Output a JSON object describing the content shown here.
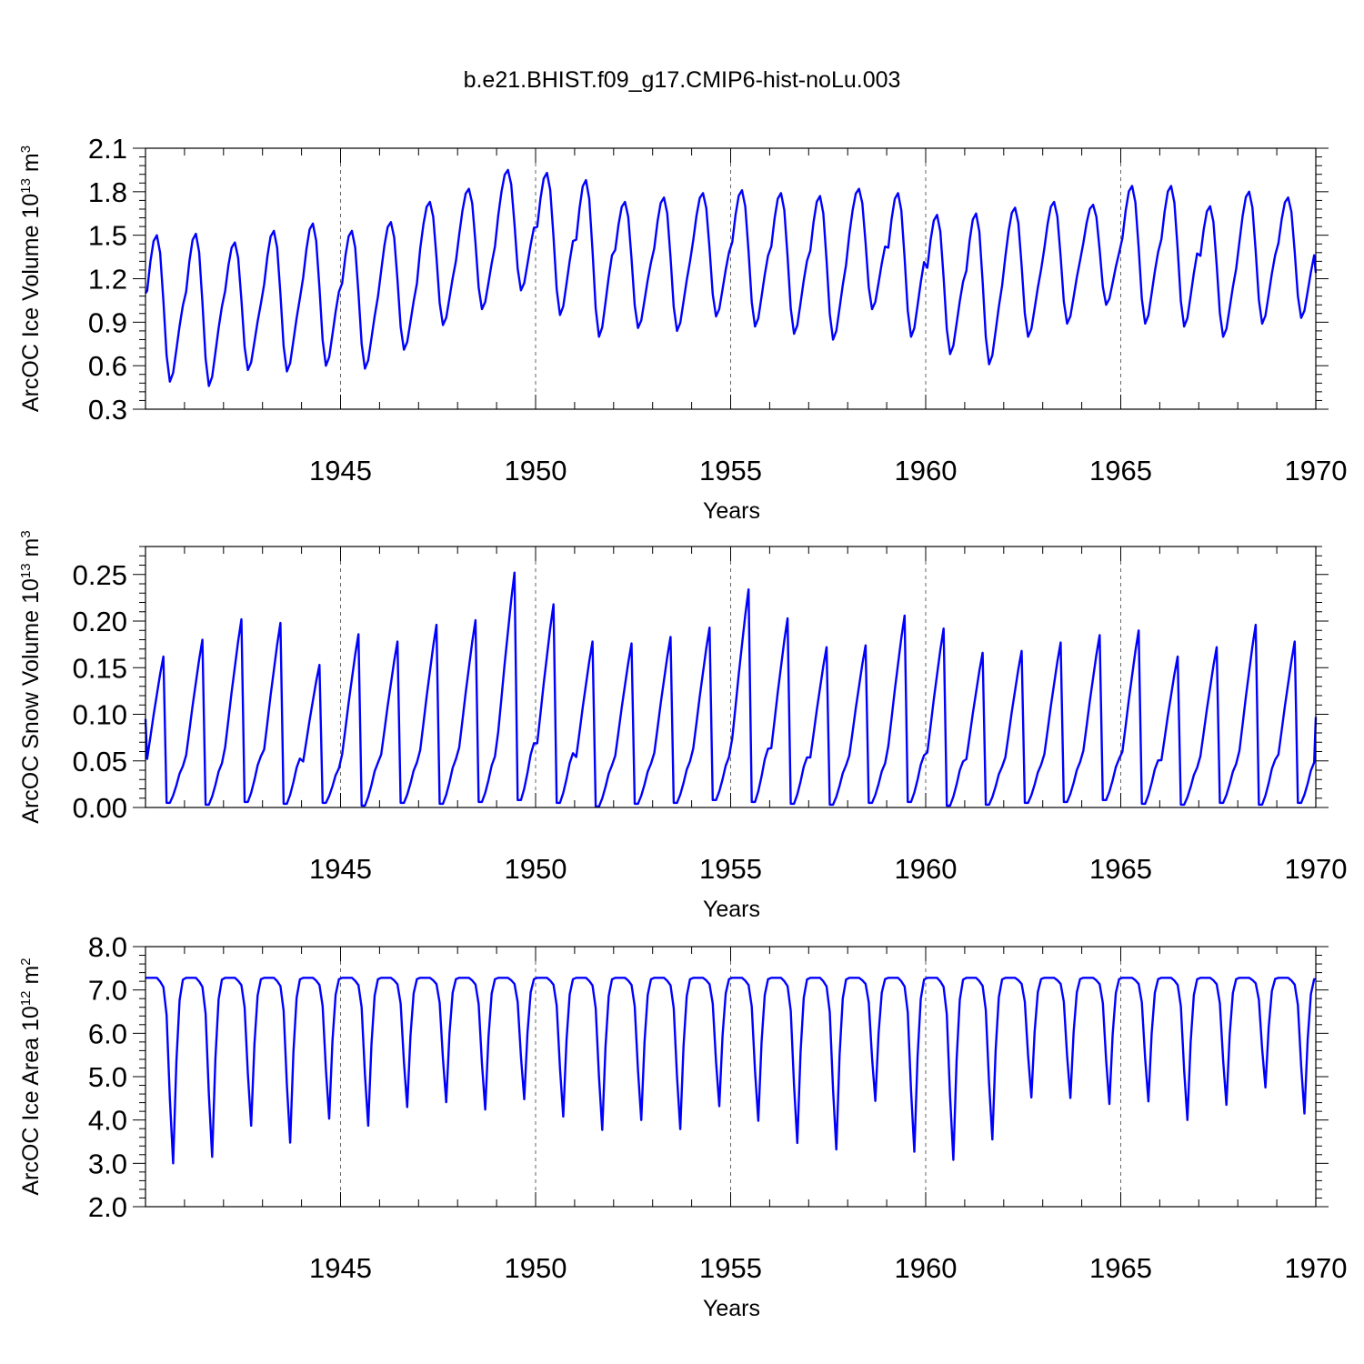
{
  "chart_data": {
    "title": "b.e21.BHIST.f09_g17.CMIP6-hist-noLu.003",
    "series_color": "#0000ff",
    "xlim": [
      1940.0,
      1970.0
    ],
    "x_major_ticks": [
      1945,
      1950,
      1955,
      1960,
      1965,
      1970
    ],
    "x_tick_labels": [
      "1945",
      "1950",
      "1955",
      "1960",
      "1965",
      "1970"
    ],
    "panels": [
      {
        "type": "line",
        "name": "ice-volume",
        "ylabel": {
          "base": "ArcOC Ice Volume 10",
          "exp": "13",
          "unit": " m",
          "unit_exp": "3"
        },
        "xlabel": "Years",
        "ylim": [
          0.3,
          2.1
        ],
        "y_ticks": [
          0.3,
          0.6,
          0.9,
          1.2,
          1.5,
          1.8,
          2.1
        ],
        "y_tick_labels": [
          "0.3",
          "0.6",
          "0.9",
          "1.2",
          "1.5",
          "1.8",
          "2.1"
        ],
        "annual_max": [
          1.5,
          1.51,
          1.45,
          1.53,
          1.58,
          1.53,
          1.59,
          1.73,
          1.82,
          1.95,
          1.93,
          1.88,
          1.73,
          1.76,
          1.79,
          1.81,
          1.79,
          1.77,
          1.82,
          1.79,
          1.64,
          1.65,
          1.69,
          1.73,
          1.71,
          1.84,
          1.84,
          1.7,
          1.8,
          1.76
        ],
        "annual_min": [
          0.49,
          0.46,
          0.57,
          0.56,
          0.6,
          0.58,
          0.71,
          0.88,
          0.99,
          1.12,
          0.95,
          0.8,
          0.86,
          0.84,
          0.94,
          0.87,
          0.82,
          0.78,
          0.99,
          0.8,
          0.68,
          0.61,
          0.8,
          0.89,
          1.02,
          0.89,
          0.87,
          0.8,
          0.89,
          0.93
        ],
        "start_value": 1.1,
        "end_value": 1.24
      },
      {
        "type": "line",
        "name": "snow-volume",
        "ylabel": {
          "base": "ArcOC Snow Volume 10",
          "exp": "13",
          "unit": " m",
          "unit_exp": "3"
        },
        "xlabel": "Years",
        "ylim": [
          0.0,
          0.28
        ],
        "y_ticks": [
          0.0,
          0.05,
          0.1,
          0.15,
          0.2,
          0.25
        ],
        "y_tick_labels": [
          "0.00",
          "0.05",
          "0.10",
          "0.15",
          "0.20",
          "0.25"
        ],
        "annual_max": [
          0.162,
          0.18,
          0.202,
          0.198,
          0.153,
          0.186,
          0.178,
          0.196,
          0.201,
          0.252,
          0.218,
          0.178,
          0.176,
          0.183,
          0.193,
          0.234,
          0.203,
          0.172,
          0.174,
          0.206,
          0.192,
          0.166,
          0.168,
          0.177,
          0.185,
          0.19,
          0.162,
          0.172,
          0.196,
          0.178
        ],
        "annual_min": [
          0.005,
          0.003,
          0.006,
          0.004,
          0.005,
          0.002,
          0.005,
          0.004,
          0.006,
          0.008,
          0.005,
          0.001,
          0.004,
          0.005,
          0.008,
          0.006,
          0.004,
          0.003,
          0.005,
          0.006,
          0.002,
          0.003,
          0.005,
          0.006,
          0.008,
          0.004,
          0.003,
          0.005,
          0.003,
          0.005
        ],
        "start_value": 0.095,
        "end_value": 0.097
      },
      {
        "type": "line",
        "name": "ice-area",
        "ylabel": {
          "base": "ArcOC Ice Area 10",
          "exp": "12",
          "unit": " m",
          "unit_exp": "2"
        },
        "xlabel": "Years",
        "ylim": [
          2.0,
          8.0
        ],
        "y_ticks": [
          2.0,
          3.0,
          4.0,
          5.0,
          6.0,
          7.0,
          8.0
        ],
        "y_tick_labels": [
          "2.0",
          "3.0",
          "4.0",
          "5.0",
          "6.0",
          "7.0",
          "8.0"
        ],
        "annual_max": [
          7.28,
          7.28,
          7.28,
          7.28,
          7.28,
          7.28,
          7.28,
          7.28,
          7.28,
          7.28,
          7.28,
          7.28,
          7.28,
          7.28,
          7.28,
          7.28,
          7.28,
          7.28,
          7.28,
          7.28,
          7.28,
          7.28,
          7.28,
          7.28,
          7.28,
          7.28,
          7.28,
          7.28,
          7.28,
          7.28
        ],
        "annual_min": [
          3.0,
          3.15,
          3.87,
          3.48,
          4.03,
          3.87,
          4.3,
          4.41,
          4.24,
          4.48,
          4.08,
          3.77,
          4.0,
          3.79,
          4.32,
          3.98,
          3.47,
          3.32,
          4.44,
          3.27,
          3.08,
          3.55,
          4.52,
          4.51,
          4.37,
          4.43,
          4.0,
          4.35,
          4.75,
          4.15
        ],
        "start_value": 7.28,
        "end_value": 7.25
      }
    ]
  }
}
